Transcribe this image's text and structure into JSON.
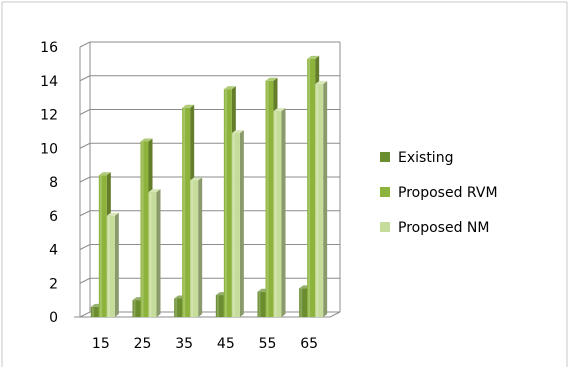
{
  "chart_data": {
    "type": "bar",
    "categories": [
      "15",
      "25",
      "35",
      "45",
      "55",
      "65"
    ],
    "series": [
      {
        "name": "Existing",
        "values": [
          0.6,
          1.0,
          1.1,
          1.3,
          1.5,
          1.7
        ],
        "color": "#6a8d2f"
      },
      {
        "name": "Proposed RVM",
        "values": [
          8.4,
          10.4,
          12.4,
          13.5,
          14.0,
          15.3
        ],
        "color": "#8db33c"
      },
      {
        "name": "Proposed NM",
        "values": [
          6.0,
          7.4,
          8.1,
          10.9,
          12.2,
          13.8
        ],
        "color": "#c6dc9a"
      }
    ],
    "yticks": [
      "0",
      "2",
      "4",
      "6",
      "8",
      "10",
      "12",
      "14",
      "16"
    ],
    "ylim": [
      0,
      16
    ],
    "grid": true,
    "legend": "right",
    "3d": true
  }
}
